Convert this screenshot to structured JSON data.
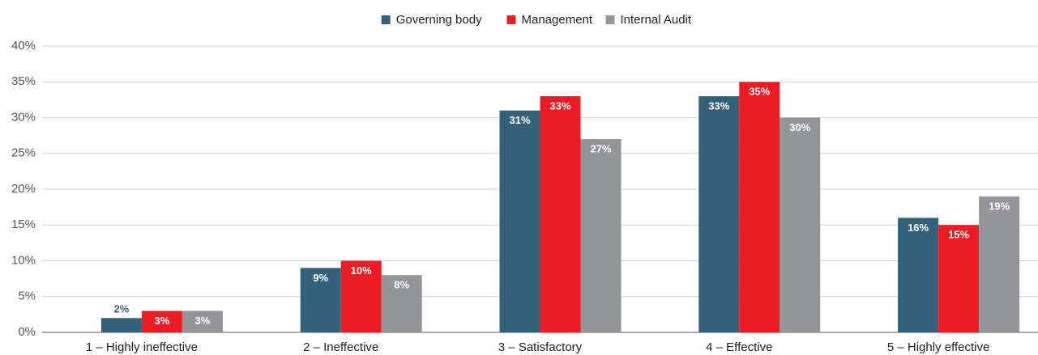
{
  "chart_data": {
    "type": "bar",
    "categories": [
      "1 – Highly ineffective",
      "2 – Ineffective",
      "3 – Satisfactory",
      "4 – Effective",
      "5 – Highly effective"
    ],
    "series": [
      {
        "name": "Governing body",
        "color": "#33617a",
        "values": [
          2,
          9,
          31,
          33,
          16
        ],
        "value_labels": [
          "2%",
          "9%",
          "31%",
          "33%",
          "16%"
        ]
      },
      {
        "name": "Management",
        "color": "#ed1c24",
        "values": [
          3,
          10,
          33,
          35,
          15
        ],
        "value_labels": [
          "3%",
          "10%",
          "33%",
          "35%",
          "15%"
        ]
      },
      {
        "name": "Internal Audit",
        "color": "#939598",
        "values": [
          3,
          8,
          27,
          30,
          19
        ],
        "value_labels": [
          "3%",
          "8%",
          "27%",
          "30%",
          "19%"
        ]
      }
    ],
    "ylim": [
      0,
      40
    ],
    "yticks": [
      {
        "value": 0,
        "label": "0%"
      },
      {
        "value": 5,
        "label": "5%"
      },
      {
        "value": 10,
        "label": "10%"
      },
      {
        "value": 15,
        "label": "15%"
      },
      {
        "value": 20,
        "label": "20%"
      },
      {
        "value": 25,
        "label": "25%"
      },
      {
        "value": 30,
        "label": "30%"
      },
      {
        "value": 35,
        "label": "35%"
      },
      {
        "value": 40,
        "label": "40%"
      }
    ],
    "grid": true,
    "legend": "top"
  }
}
